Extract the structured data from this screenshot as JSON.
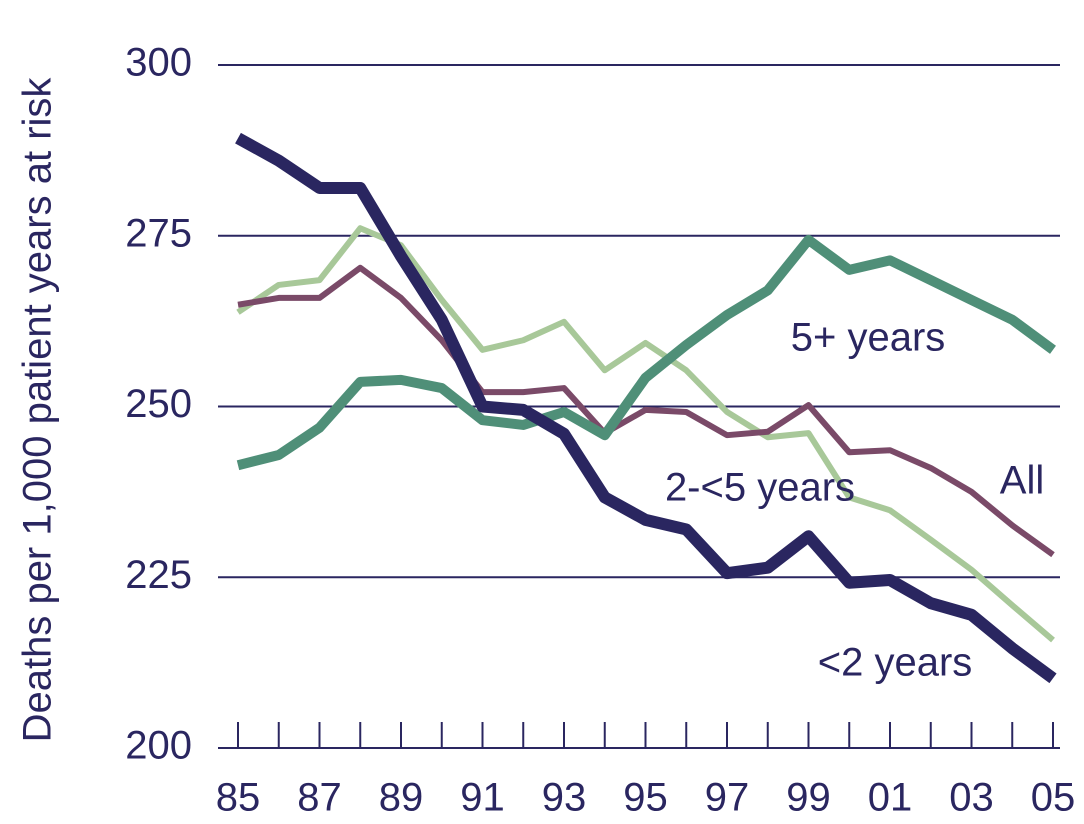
{
  "chart_data": {
    "type": "line",
    "y_label": "Deaths per 1,000 patient years at risk",
    "categories": [
      "85",
      null,
      "87",
      null,
      "89",
      null,
      "91",
      null,
      "93",
      null,
      "95",
      null,
      "97",
      null,
      "99",
      null,
      "01",
      null,
      "03",
      null,
      "05"
    ],
    "series": [
      {
        "name": "<2 years",
        "color": "#2a2660",
        "values": [
          289.3,
          286,
          282,
          282,
          272,
          262.7,
          250,
          249.5,
          246,
          236.7,
          233.4,
          232,
          225.6,
          226.4,
          231,
          224.2,
          224.6,
          221.2,
          219.5,
          214.6,
          210.2
        ]
      },
      {
        "name": "2-<5 years",
        "color": "#a8c899",
        "values": [
          263.8,
          267.8,
          268.5,
          276.1,
          273.6,
          265.6,
          258.3,
          259.7,
          262.4,
          255.3,
          259.3,
          255.3,
          249.2,
          245.5,
          246.1,
          236.7,
          234.8,
          230.5,
          226.1,
          220.9,
          215.8
        ]
      },
      {
        "name": "All",
        "color": "#7a4a68",
        "values": [
          264.9,
          265.9,
          265.9,
          270.3,
          265.9,
          259.7,
          252.1,
          252.1,
          252.7,
          246.1,
          249.5,
          249.2,
          245.8,
          246.3,
          250.2,
          243.3,
          243.6,
          241,
          237.5,
          232.6,
          228.3
        ]
      },
      {
        "name": "5+ years",
        "color": "#4f8f78",
        "values": [
          241.4,
          242.9,
          246.9,
          253.6,
          253.9,
          252.7,
          248,
          247.3,
          249.2,
          245.8,
          254.2,
          259,
          263.4,
          267,
          274.4,
          270,
          271.4,
          268.5,
          265.6,
          262.7,
          258.3
        ]
      }
    ],
    "ylim": [
      200,
      300
    ],
    "yticks": [
      200,
      225,
      250,
      275,
      300
    ],
    "grid": true
  }
}
